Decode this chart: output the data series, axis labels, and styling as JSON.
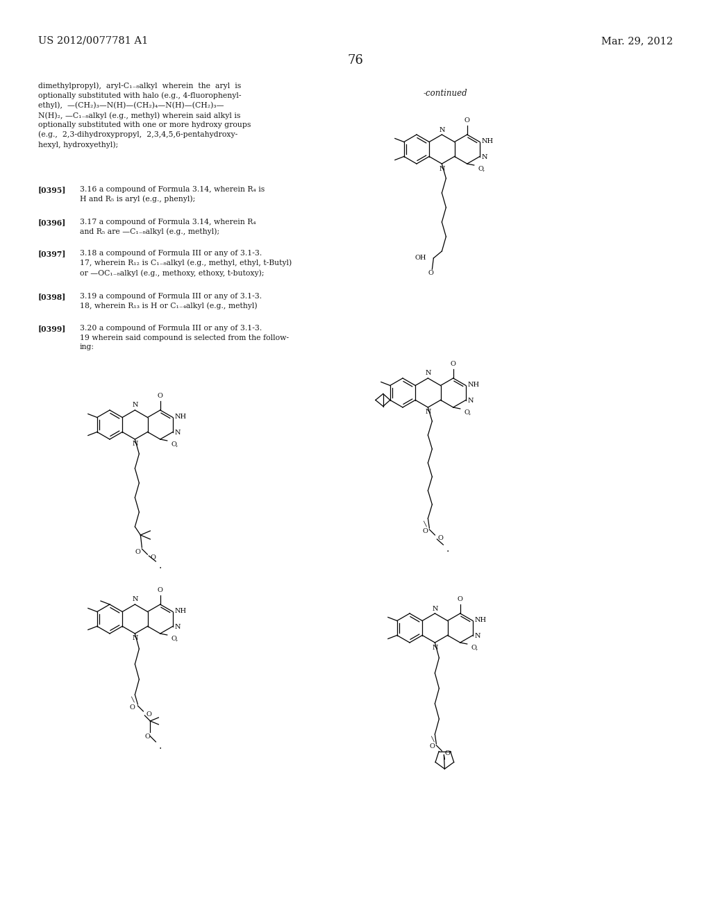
{
  "bg": "#ffffff",
  "tc": "#1a1a1a",
  "header_left": "US 2012/0077781 A1",
  "header_right": "Mar. 29, 2012",
  "page_num": "76",
  "continued": "-continued",
  "body_fs": 7.8,
  "header_fs": 10.5,
  "page_fs": 13
}
